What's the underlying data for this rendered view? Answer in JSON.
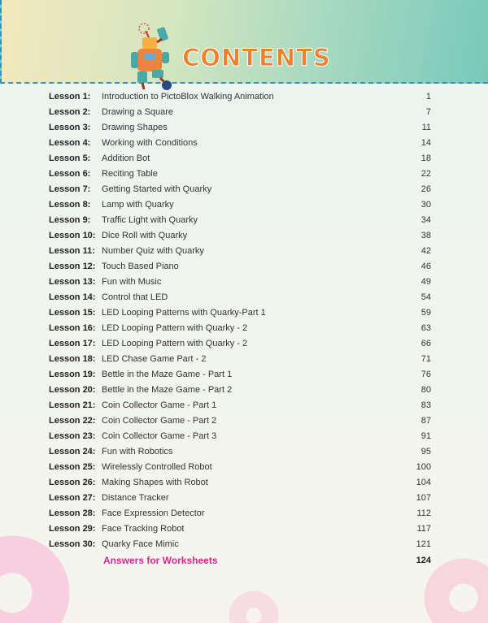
{
  "header": {
    "title": "CONTENTS",
    "mascot_icon": "robot-mascot"
  },
  "colors": {
    "title": "#f07f2c",
    "answers": "#d6288f",
    "dashed_border": "#3a8fb7"
  },
  "lessons": [
    {
      "num": "Lesson 1:",
      "name": "Introduction to PictoBlox Walking Animation",
      "page": "1"
    },
    {
      "num": "Lesson 2:",
      "name": "Drawing a Square",
      "page": "7"
    },
    {
      "num": "Lesson 3:",
      "name": "Drawing Shapes",
      "page": "11"
    },
    {
      "num": "Lesson 4:",
      "name": "Working with Conditions",
      "page": "14"
    },
    {
      "num": "Lesson 5:",
      "name": "Addition Bot",
      "page": "18"
    },
    {
      "num": "Lesson 6:",
      "name": "Reciting Table",
      "page": "22"
    },
    {
      "num": "Lesson 7:",
      "name": "Getting Started with Quarky",
      "page": "26"
    },
    {
      "num": "Lesson 8:",
      "name": "Lamp with Quarky",
      "page": "30"
    },
    {
      "num": "Lesson 9:",
      "name": "Traffic Light with Quarky",
      "page": "34"
    },
    {
      "num": "Lesson 10:",
      "name": "Dice Roll with Quarky",
      "page": "38"
    },
    {
      "num": "Lesson 11:",
      "name": "Number Quiz with Quarky",
      "page": "42"
    },
    {
      "num": "Lesson 12:",
      "name": "Touch Based Piano",
      "page": "46"
    },
    {
      "num": "Lesson 13:",
      "name": "Fun with Music",
      "page": "49"
    },
    {
      "num": "Lesson 14:",
      "name": "Control that LED",
      "page": "54"
    },
    {
      "num": "Lesson 15:",
      "name": "LED Looping Patterns with Quarky-Part 1",
      "page": "59"
    },
    {
      "num": "Lesson 16:",
      "name": "LED Looping Pattern with Quarky - 2",
      "page": "63"
    },
    {
      "num": "Lesson 17:",
      "name": "LED Looping Pattern with Quarky - 2",
      "page": "66"
    },
    {
      "num": "Lesson 18:",
      "name": "LED Chase Game Part - 2",
      "page": "71"
    },
    {
      "num": "Lesson 19:",
      "name": "Bettle in the Maze Game - Part 1",
      "page": "76"
    },
    {
      "num": "Lesson 20:",
      "name": "Bettle in the Maze Game - Part 2",
      "page": "80"
    },
    {
      "num": "Lesson 21:",
      "name": "Coin Collector Game - Part  1",
      "page": "83"
    },
    {
      "num": "Lesson 22:",
      "name": "Coin Collector Game - Part  2",
      "page": "87"
    },
    {
      "num": "Lesson 23:",
      "name": "Coin Collector Game - Part  3",
      "page": "91"
    },
    {
      "num": "Lesson 24:",
      "name": "Fun with Robotics",
      "page": "95"
    },
    {
      "num": "Lesson 25:",
      "name": "Wirelessly Controlled Robot",
      "page": "100"
    },
    {
      "num": "Lesson 26:",
      "name": "Making Shapes with Robot",
      "page": "104"
    },
    {
      "num": "Lesson 27:",
      "name": "Distance Tracker",
      "page": "107"
    },
    {
      "num": "Lesson 28:",
      "name": "Face Expression Detector",
      "page": "112"
    },
    {
      "num": "Lesson 29:",
      "name": "Face Tracking Robot",
      "page": "117"
    },
    {
      "num": "Lesson 30:",
      "name": "Quarky Face Mimic",
      "page": "121"
    }
  ],
  "answers": {
    "label": "Answers for Worksheets",
    "page": "124"
  }
}
